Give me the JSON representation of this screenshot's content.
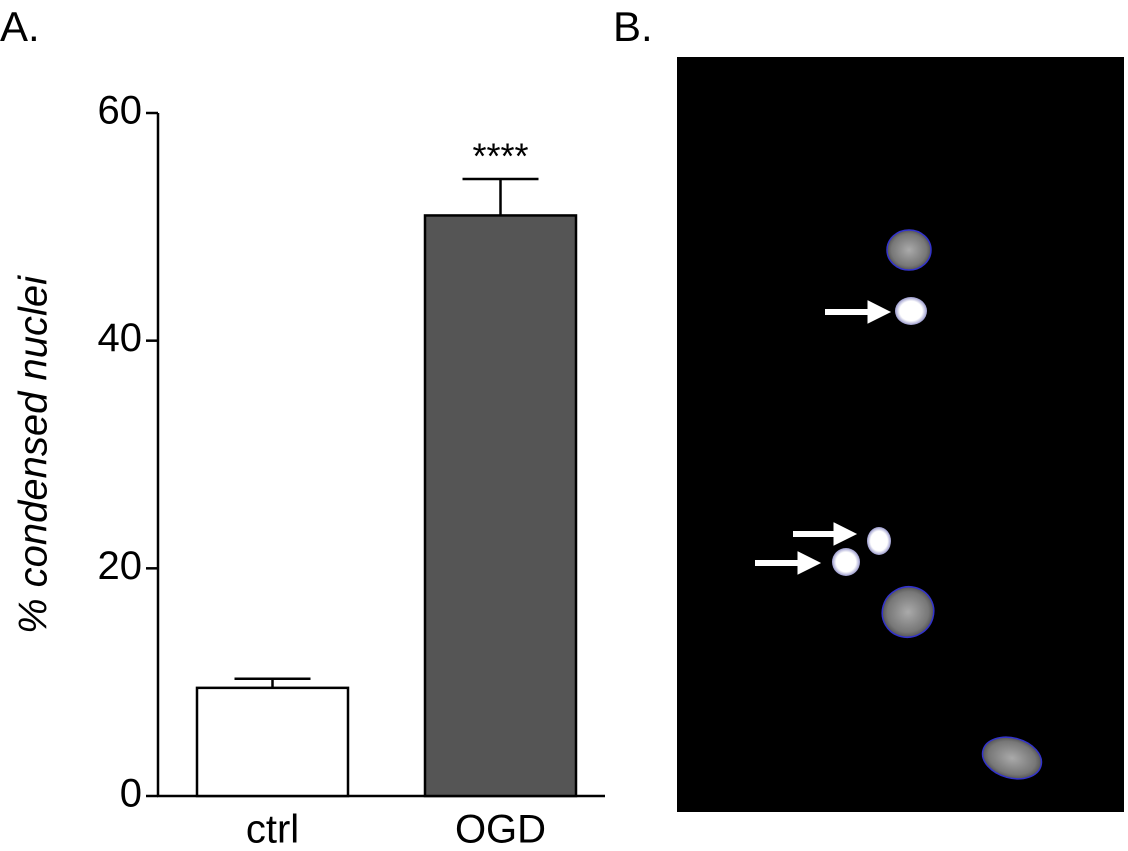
{
  "panel_labels": [
    "A.",
    "B."
  ],
  "chart_data": {
    "type": "bar",
    "ylabel": "% condensed nuclei",
    "categories": [
      "ctrl",
      "OGD"
    ],
    "values": [
      9.5,
      51
    ],
    "errors": [
      0.8,
      3.2
    ],
    "colors": [
      "#ffffff",
      "#555555"
    ],
    "annotation": "****",
    "ylim": [
      0,
      60
    ],
    "yticks": [
      0,
      20,
      40,
      60
    ]
  }
}
